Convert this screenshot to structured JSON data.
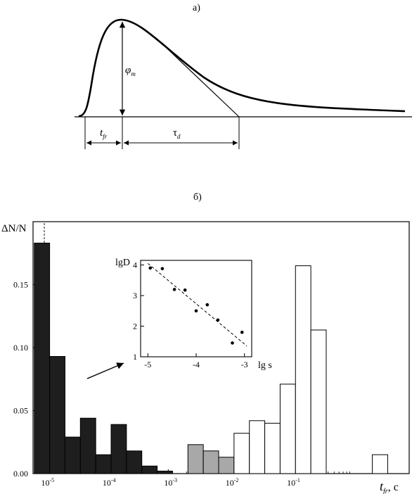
{
  "panel_a": {
    "label": "а)",
    "amplitude_label": "φ",
    "amplitude_sub": "m",
    "front_label": "t",
    "front_sub": "fr",
    "decay_label": "τ",
    "decay_sub": "d"
  },
  "panel_b": {
    "label": "б)"
  },
  "chart_data": [
    {
      "type": "bar",
      "ylabel": "ΔN/N",
      "xlabel_main": "t",
      "xlabel_sub": "fr",
      "xlabel_unit": ", с",
      "xscale": "log",
      "xlim": [
        -5.2,
        0.92
      ],
      "ylim": [
        0,
        0.2
      ],
      "yticks": [
        "0.00",
        "0.05",
        "0.10",
        "0.15"
      ],
      "ytick_values": [
        0,
        0.05,
        0.1,
        0.15
      ],
      "xticks": [
        {
          "base": "10",
          "exp": "-5",
          "log": -5
        },
        {
          "base": "10",
          "exp": "-4",
          "log": -4
        },
        {
          "base": "10",
          "exp": "-3",
          "log": -3
        },
        {
          "base": "10",
          "exp": "-2",
          "log": -2
        },
        {
          "base": "10",
          "exp": "-1",
          "log": -1
        }
      ],
      "series": [
        {
          "fill": "#1e1e1e",
          "bins": [
            {
              "from": -5.18,
              "to": -4.93,
              "value": 0.183
            },
            {
              "from": -4.93,
              "to": -4.68,
              "value": 0.093
            },
            {
              "from": -4.68,
              "to": -4.43,
              "value": 0.029
            },
            {
              "from": -4.43,
              "to": -4.18,
              "value": 0.044
            },
            {
              "from": -4.18,
              "to": -3.93,
              "value": 0.015
            },
            {
              "from": -3.93,
              "to": -3.68,
              "value": 0.039
            },
            {
              "from": -3.68,
              "to": -3.43,
              "value": 0.018
            },
            {
              "from": -3.43,
              "to": -3.18,
              "value": 0.006
            },
            {
              "from": -3.18,
              "to": -2.93,
              "value": 0.002
            }
          ]
        },
        {
          "fill": "#a8a8a8",
          "bins": [
            {
              "from": -2.68,
              "to": -2.43,
              "value": 0.023
            },
            {
              "from": -2.43,
              "to": -2.18,
              "value": 0.018
            },
            {
              "from": -2.18,
              "to": -1.93,
              "value": 0.013
            }
          ]
        },
        {
          "fill": "#ffffff",
          "bins": [
            {
              "from": -1.93,
              "to": -1.68,
              "value": 0.032
            },
            {
              "from": -1.68,
              "to": -1.43,
              "value": 0.042
            },
            {
              "from": -1.43,
              "to": -1.18,
              "value": 0.04
            },
            {
              "from": -1.18,
              "to": -0.93,
              "value": 0.071
            },
            {
              "from": -0.93,
              "to": -0.68,
              "value": 0.165
            },
            {
              "from": -0.68,
              "to": -0.43,
              "value": 0.114
            },
            {
              "from": -0.43,
              "to": -0.18,
              "value": 0.0
            },
            {
              "from": 0.32,
              "to": 0.57,
              "value": 0.015
            }
          ]
        }
      ]
    },
    {
      "type": "scatter",
      "xlabel": "lg s",
      "ylabel": "lgD",
      "xlim": [
        -5.15,
        -2.85
      ],
      "ylim": [
        1,
        4.15
      ],
      "xticks": [
        "-5",
        "-4",
        "-3"
      ],
      "xtick_values": [
        -5,
        -4,
        -3
      ],
      "yticks": [
        "1",
        "2",
        "3",
        "4"
      ],
      "ytick_values": [
        1,
        2,
        3,
        4
      ],
      "points": [
        {
          "x": -4.95,
          "y": 3.9
        },
        {
          "x": -4.7,
          "y": 3.88
        },
        {
          "x": -4.45,
          "y": 3.2
        },
        {
          "x": -4.23,
          "y": 3.18
        },
        {
          "x": -4.0,
          "y": 2.5
        },
        {
          "x": -3.77,
          "y": 2.7
        },
        {
          "x": -3.55,
          "y": 2.2
        },
        {
          "x": -3.25,
          "y": 1.45
        },
        {
          "x": -3.05,
          "y": 1.8
        }
      ],
      "fit": {
        "from": [
          -5.0,
          4.05
        ],
        "to": [
          -2.95,
          1.35
        ],
        "style": "dashed"
      }
    }
  ]
}
